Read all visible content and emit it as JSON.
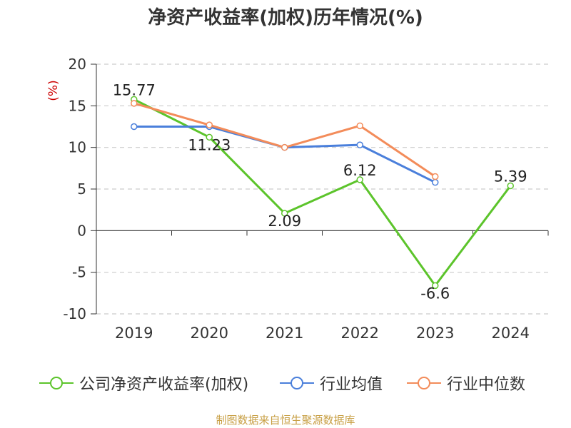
{
  "title": "净资产收益率(加权)历年情况(%)",
  "source": "制图数据来自恒生聚源数据库",
  "colors": {
    "company": "#5cc42b",
    "industry_avg": "#4a7fdb",
    "industry_median": "#f38c5a",
    "unit": "#cc0000"
  },
  "chart_data": {
    "type": "line",
    "title": "净资产收益率(加权)历年情况(%)",
    "ylabel": "(%)",
    "ylim": [
      -10,
      20
    ],
    "yticks": [
      20,
      15,
      10,
      5,
      0,
      -5,
      -10
    ],
    "categories": [
      "2019",
      "2020",
      "2021",
      "2022",
      "2023",
      "2024"
    ],
    "grid": true,
    "legend_position": "bottom",
    "series": [
      {
        "name": "公司净资产收益率(加权)",
        "values": [
          15.77,
          11.23,
          2.09,
          6.12,
          -6.6,
          5.39
        ],
        "labels": [
          "15.77",
          "11.23",
          "2.09",
          "6.12",
          "-6.6",
          "5.39"
        ]
      },
      {
        "name": "行业均值",
        "values": [
          12.5,
          12.5,
          10.0,
          10.3,
          5.8,
          null
        ]
      },
      {
        "name": "行业中位数",
        "values": [
          15.3,
          12.7,
          10.0,
          12.6,
          6.5,
          null
        ]
      }
    ]
  }
}
